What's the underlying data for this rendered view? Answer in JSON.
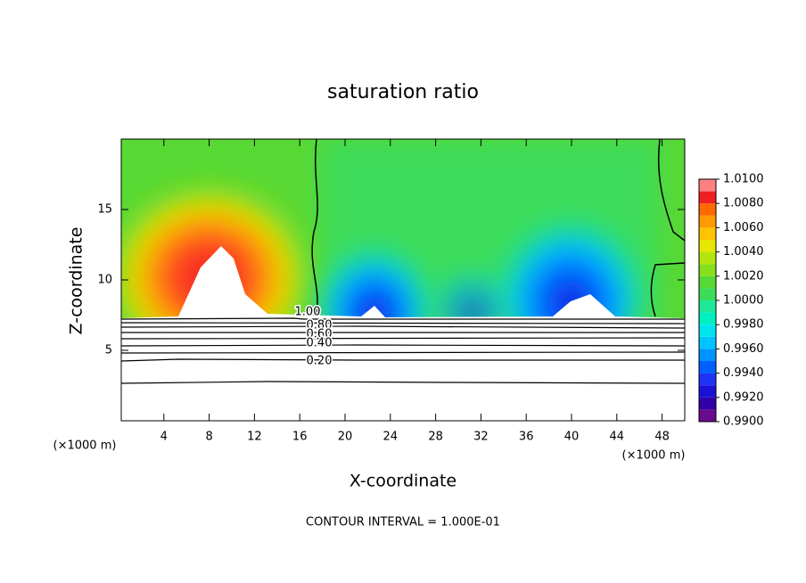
{
  "chart_data": {
    "type": "contour",
    "title": "saturation ratio",
    "x_label": "X-coordinate",
    "y_label": "Z-coordinate",
    "x_unit_left": "(×1000 m)",
    "x_unit_right": "(×1000 m)",
    "footer": "CONTOUR INTERVAL = 1.000E-01",
    "xlim": [
      0,
      50
    ],
    "xticks": [
      4,
      8,
      12,
      16,
      20,
      24,
      28,
      32,
      36,
      40,
      44,
      48
    ],
    "ylim": [
      0,
      20
    ],
    "yticks": [
      5,
      10,
      15
    ],
    "contour_labels": [
      "1.00",
      "0.80",
      "0.60",
      "0.40",
      "0.20"
    ],
    "colorbar": {
      "levels": [
        0.99,
        0.991,
        0.992,
        0.993,
        0.994,
        0.995,
        0.996,
        0.997,
        0.998,
        0.999,
        1.0,
        1.001,
        1.002,
        1.003,
        1.004,
        1.005,
        1.006,
        1.007,
        1.008,
        1.009,
        1.01
      ],
      "colors": [
        "#6a0a8c",
        "#3200a8",
        "#1a10d8",
        "#1e32f5",
        "#0060ff",
        "#0094ff",
        "#00c4ff",
        "#00e4ee",
        "#00f0c4",
        "#20e89a",
        "#3cdc5a",
        "#58d834",
        "#86e01c",
        "#b4e60e",
        "#e6e600",
        "#ffc400",
        "#ff9a00",
        "#ff6a00",
        "#f02020",
        "#ff8080"
      ],
      "ticks": [
        {
          "value": 0.99,
          "label": "0.9900"
        },
        {
          "value": 0.992,
          "label": "0.9920"
        },
        {
          "value": 0.994,
          "label": "0.9940"
        },
        {
          "value": 0.996,
          "label": "0.9960"
        },
        {
          "value": 0.998,
          "label": "0.9980"
        },
        {
          "value": 1.0,
          "label": "1.0000"
        },
        {
          "value": 1.002,
          "label": "1.0020"
        },
        {
          "value": 1.004,
          "label": "1.0040"
        },
        {
          "value": 1.006,
          "label": "1.0060"
        },
        {
          "value": 1.008,
          "label": "1.0080"
        },
        {
          "value": 1.01,
          "label": "1.0100"
        }
      ]
    }
  }
}
